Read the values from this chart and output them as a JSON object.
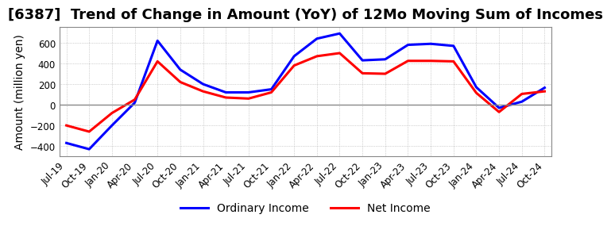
{
  "title": "[6387]  Trend of Change in Amount (YoY) of 12Mo Moving Sum of Incomes",
  "ylabel": "Amount (million yen)",
  "x_labels": [
    "Jul-19",
    "Oct-19",
    "Jan-20",
    "Apr-20",
    "Jul-20",
    "Oct-20",
    "Jan-21",
    "Apr-21",
    "Jul-21",
    "Oct-21",
    "Jan-22",
    "Apr-22",
    "Jul-22",
    "Oct-22",
    "Jan-23",
    "Apr-23",
    "Jul-23",
    "Oct-23",
    "Jan-24",
    "Apr-24",
    "Jul-24",
    "Oct-24"
  ],
  "ordinary_income": [
    -370,
    -430,
    -200,
    20,
    620,
    340,
    200,
    120,
    120,
    150,
    470,
    640,
    690,
    430,
    440,
    580,
    590,
    570,
    170,
    -30,
    30,
    165
  ],
  "net_income": [
    -200,
    -260,
    -80,
    50,
    420,
    220,
    130,
    70,
    60,
    120,
    380,
    470,
    500,
    305,
    300,
    425,
    425,
    420,
    115,
    -70,
    105,
    130
  ],
  "ordinary_color": "#0000ff",
  "net_color": "#ff0000",
  "ylim": [
    -500,
    750
  ],
  "yticks": [
    -400,
    -200,
    0,
    200,
    400,
    600
  ],
  "legend_labels": [
    "Ordinary Income",
    "Net Income"
  ],
  "background_color": "#ffffff",
  "grid_color": "#aaaaaa",
  "title_fontsize": 13,
  "label_fontsize": 10,
  "tick_fontsize": 8.5,
  "line_width": 2.2
}
